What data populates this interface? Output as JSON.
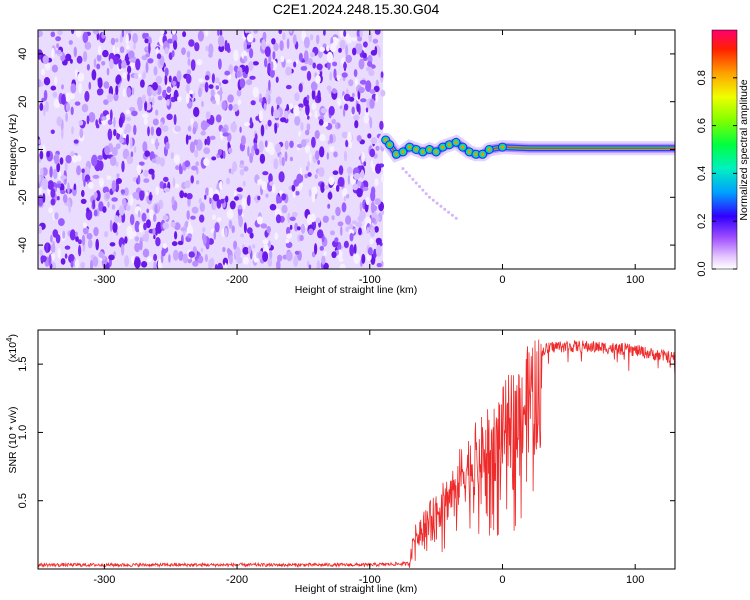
{
  "chart_data": [
    {
      "type": "heatmap",
      "title": "C2E1.2024.248.15.30.G04",
      "xlabel": "Height of straight line (km)",
      "ylabel": "Frequency (Hz)",
      "xlim": [
        -350,
        130
      ],
      "ylim": [
        -50,
        50
      ],
      "x_ticks": [
        -300,
        -200,
        -100,
        0,
        100
      ],
      "x_tick_labels": [
        "-300",
        "-200",
        "-100",
        "0",
        "100"
      ],
      "y_ticks": [
        -40,
        -20,
        0,
        20,
        40
      ],
      "y_tick_labels": [
        "-40",
        "-20",
        "0",
        "20",
        "40"
      ],
      "noise_region_x": [
        -350,
        -90
      ],
      "signal_track": [
        {
          "x": -88,
          "y": 4
        },
        {
          "x": -85,
          "y": 2
        },
        {
          "x": -80,
          "y": -2
        },
        {
          "x": -75,
          "y": -1
        },
        {
          "x": -70,
          "y": 1
        },
        {
          "x": -65,
          "y": 0
        },
        {
          "x": -60,
          "y": -1
        },
        {
          "x": -55,
          "y": 0
        },
        {
          "x": -50,
          "y": -1
        },
        {
          "x": -45,
          "y": 1
        },
        {
          "x": -40,
          "y": 2
        },
        {
          "x": -35,
          "y": 3
        },
        {
          "x": -30,
          "y": 1
        },
        {
          "x": -25,
          "y": -1
        },
        {
          "x": -20,
          "y": -2
        },
        {
          "x": -15,
          "y": -2
        },
        {
          "x": -10,
          "y": 0
        },
        {
          "x": 0,
          "y": 1
        },
        {
          "x": 20,
          "y": 0.5
        },
        {
          "x": 60,
          "y": 0.5
        },
        {
          "x": 100,
          "y": 0.5
        },
        {
          "x": 130,
          "y": 0.5
        }
      ],
      "tail_feature": [
        {
          "x": -75,
          "y": -8
        },
        {
          "x": -55,
          "y": -20
        },
        {
          "x": -32,
          "y": -30
        }
      ],
      "grid": false,
      "colorbar": {
        "label": "Normalized spectral amplitude",
        "range": [
          0,
          1
        ],
        "ticks": [
          0.0,
          0.2,
          0.4,
          0.6,
          0.8
        ],
        "tick_labels": [
          "0.0",
          "0.2",
          "0.4",
          "0.6",
          "0.8"
        ],
        "colors": [
          "#ffffff",
          "#c080ff",
          "#8000ff",
          "#0000ff",
          "#00c0ff",
          "#00ff80",
          "#00ff00",
          "#c0ff00",
          "#ffff00",
          "#ff8000",
          "#ff0000",
          "#ff0080"
        ]
      },
      "noise_color": "#7b2cf2",
      "track_color": "#ff3030"
    },
    {
      "type": "line",
      "title": "",
      "xlabel": "Height of straight line (km)",
      "ylabel": "SNR (10 * v/v)",
      "y_multiplier": "(x10",
      "y_multiplier_exp": "4",
      "y_multiplier_close": ")",
      "xlim": [
        -350,
        130
      ],
      "ylim": [
        0,
        17500
      ],
      "x_ticks": [
        -300,
        -200,
        -100,
        0,
        100
      ],
      "x_tick_labels": [
        "-300",
        "-200",
        "-100",
        "0",
        "100"
      ],
      "y_ticks": [
        5000,
        10000,
        15000
      ],
      "y_tick_labels": [
        "0.5",
        "1.0",
        "1.5"
      ],
      "grid": false,
      "series": [
        {
          "color": "#ee2a2a",
          "envelope": [
            {
              "x": -350,
              "y": 300
            },
            {
              "x": -100,
              "y": 300
            },
            {
              "x": -70,
              "y": 400
            },
            {
              "x": -68,
              "y": 2500
            },
            {
              "x": -60,
              "y": 4000
            },
            {
              "x": -50,
              "y": 5000
            },
            {
              "x": -40,
              "y": 6500
            },
            {
              "x": -30,
              "y": 8500
            },
            {
              "x": -20,
              "y": 9800
            },
            {
              "x": -10,
              "y": 10800
            },
            {
              "x": 0,
              "y": 12200
            },
            {
              "x": 10,
              "y": 13800
            },
            {
              "x": 20,
              "y": 15000
            },
            {
              "x": 30,
              "y": 16000
            },
            {
              "x": 40,
              "y": 16300
            },
            {
              "x": 60,
              "y": 16300
            },
            {
              "x": 80,
              "y": 16200
            },
            {
              "x": 100,
              "y": 16000
            },
            {
              "x": 115,
              "y": 15700
            },
            {
              "x": 130,
              "y": 15500
            }
          ]
        }
      ]
    }
  ]
}
